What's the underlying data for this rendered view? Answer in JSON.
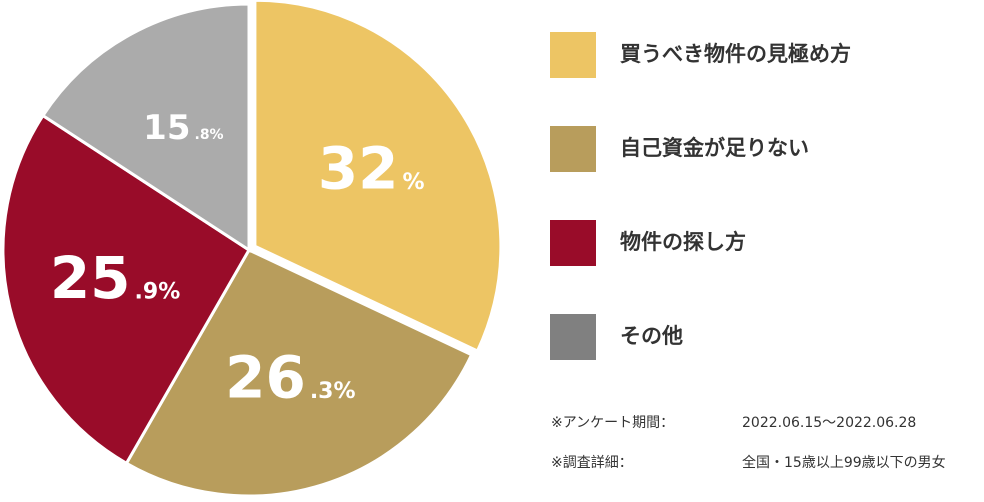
{
  "chart_data": {
    "type": "pie",
    "categories": [
      "買うべき物件の見極め方",
      "自己資金が足りない",
      "物件の探し方",
      "その他"
    ],
    "values": [
      32,
      26.3,
      25.9,
      15.8
    ],
    "value_labels": [
      "32%",
      "26.3%",
      "25.9%",
      "15.8%"
    ],
    "colors": [
      "#edc564",
      "#b89d5c",
      "#990c29",
      "#ababab"
    ],
    "legend_colors": [
      "#edc564",
      "#b89d5c",
      "#990c29",
      "#808080"
    ],
    "exploded": [
      true,
      false,
      false,
      false
    ],
    "start_angle": "top",
    "direction": "clockwise",
    "legend": "right"
  },
  "notes": [
    {
      "label": "※アンケート期間：",
      "value": "2022.06.15〜2022.06.28"
    },
    {
      "label": "※調査詳細：",
      "value": "全国・15歳以上99歳以下の男女"
    }
  ]
}
